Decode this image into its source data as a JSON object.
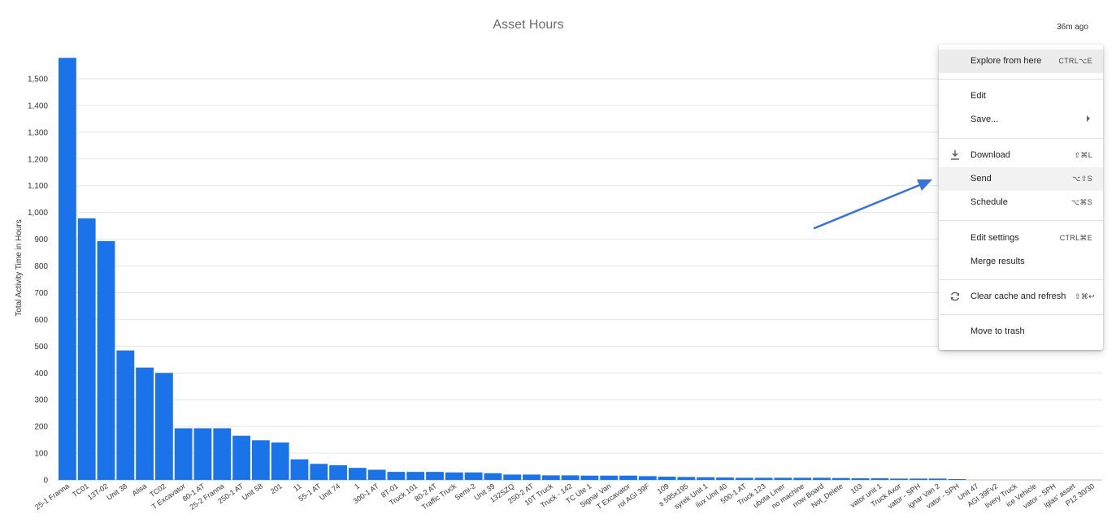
{
  "header": {
    "title": "Asset Hours",
    "updated": "36m ago"
  },
  "colors": {
    "bar": "#1a73e8",
    "grid": "#e6e6e6",
    "arrow": "#3a73d8"
  },
  "chart_data": {
    "type": "bar",
    "title": "Asset Hours",
    "xlabel": "",
    "ylabel": "Total Activity Time in Hours",
    "ylim": [
      0,
      1600
    ],
    "yticks": [
      0,
      100,
      200,
      300,
      400,
      500,
      600,
      700,
      800,
      900,
      1000,
      1100,
      1200,
      1300,
      1400,
      1500
    ],
    "ytick_labels": [
      "0",
      "100",
      "200",
      "300",
      "400",
      "500",
      "600",
      "700",
      "800",
      "900",
      "1,000",
      "1,100",
      "1,200",
      "1,300",
      "1,400",
      "1,500"
    ],
    "grid": true,
    "legend": "none",
    "categories": [
      "25-1 Franna",
      "TC01",
      "13T-02",
      "Unit 38",
      "Alisa",
      "TC02",
      "T Excavator",
      "80-1 AT",
      "25-2 Franna",
      "250-1 AT",
      "Unit 58",
      "201",
      "11",
      "55-1 AT",
      "Unit 74",
      "1",
      "300-1 AT",
      "8T-01",
      "Truck 101",
      "80-2 AT",
      "Traffic Truck",
      "Semi-2",
      "Unit 39",
      "132SZQ",
      "250-2 AT",
      "10T Truck",
      "Truck - 142",
      "TC Ute 1",
      "Signar Van",
      "T Excavator",
      "rol AGI 39F",
      "109",
      "s 595x195",
      "syrek Unit 1",
      "ilux Unit 40",
      "500-1 AT",
      "Truck 123",
      "ubota Liner",
      "no machine",
      "rrow Board",
      "Not_Delete",
      "103",
      "vator unit 1",
      "Truck Axor",
      "vator - SPH",
      "ignar Van 2",
      "vator - SPH",
      "Unit 47",
      "AGI 39Fv2",
      "livery Truck",
      "ice Vehicle",
      "vator - SPH",
      "lglas' asset",
      "P12 30/30"
    ],
    "values": [
      1578,
      978,
      893,
      484,
      420,
      400,
      193,
      193,
      193,
      165,
      148,
      140,
      77,
      60,
      55,
      45,
      38,
      30,
      30,
      30,
      28,
      28,
      25,
      20,
      20,
      17,
      17,
      16,
      16,
      16,
      14,
      12,
      11,
      10,
      9,
      8,
      8,
      8,
      8,
      8,
      7,
      6,
      6,
      5,
      5,
      5,
      3,
      0,
      0,
      0,
      0,
      0,
      0,
      0
    ]
  },
  "menu": {
    "items": [
      {
        "label": "Explore from here",
        "shortcut": "CTRL⌥E"
      },
      {
        "label": "Edit",
        "shortcut": ""
      },
      {
        "label": "Save...",
        "shortcut": ""
      },
      {
        "label": "Download",
        "shortcut": "⇧⌘L",
        "icon": "download-icon"
      },
      {
        "label": "Send",
        "shortcut": "⌥⇧S"
      },
      {
        "label": "Schedule",
        "shortcut": "⌥⌘S"
      },
      {
        "label": "Edit settings",
        "shortcut": "CTRL⌘E"
      },
      {
        "label": "Merge results",
        "shortcut": ""
      },
      {
        "label": "Clear cache and refresh",
        "shortcut": "⇧⌘↩",
        "icon": "refresh-icon"
      },
      {
        "label": "Move to trash",
        "shortcut": ""
      }
    ]
  }
}
